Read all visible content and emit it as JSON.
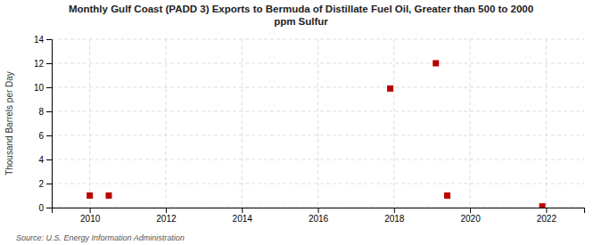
{
  "chart_data": {
    "type": "scatter",
    "title": "Monthly Gulf Coast (PADD 3) Exports to Bermuda of Distillate Fuel Oil, Greater than 500 to 2000\nppm Sulfur",
    "ylabel": "Thousand Barrels per Day",
    "source": "Source: U.S. Energy Information Administration",
    "x": [
      2010.0,
      2010.5,
      2017.9,
      2019.1,
      2019.4,
      2021.9
    ],
    "values": [
      1.0,
      1.0,
      9.9,
      12.0,
      1.0,
      0.1
    ],
    "color": "#bb0000",
    "marker": "square",
    "xlim": [
      2009,
      2023
    ],
    "ylim": [
      0,
      14
    ],
    "xticks": [
      2010,
      2012,
      2014,
      2016,
      2018,
      2020,
      2022
    ],
    "yticks": [
      0,
      2,
      4,
      6,
      8,
      10,
      12,
      14
    ],
    "grid": true
  }
}
